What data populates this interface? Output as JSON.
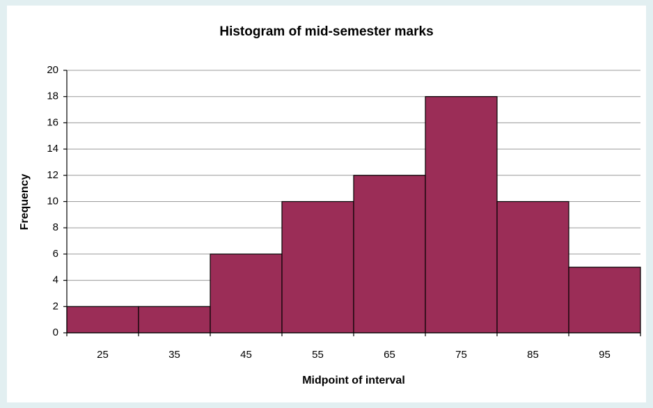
{
  "chart_data": {
    "type": "bar",
    "title": "Histogram of mid-semester marks",
    "x_label": "Midpoint of interval",
    "y_label": "Frequency",
    "categories": [
      "25",
      "35",
      "45",
      "55",
      "65",
      "75",
      "85",
      "95"
    ],
    "values": [
      2,
      2,
      6,
      10,
      12,
      18,
      10,
      5
    ],
    "color": "#9b2d57",
    "ylim": [
      0,
      20
    ],
    "yticks": [
      0,
      2,
      4,
      6,
      8,
      10,
      12,
      14,
      16,
      18,
      20
    ],
    "grid": true
  }
}
